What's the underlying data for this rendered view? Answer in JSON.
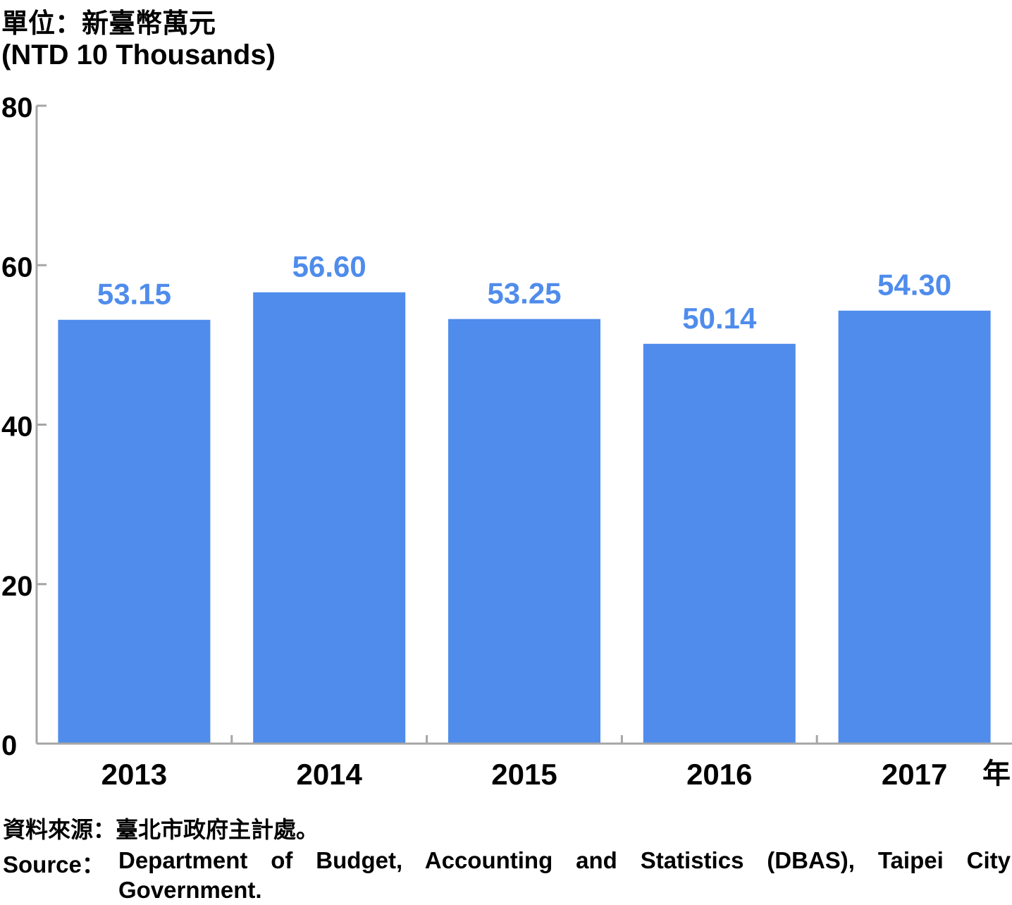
{
  "unit": {
    "zh": "單位：新臺幣萬元",
    "en": "(NTD 10 Thousands)"
  },
  "x_unit": "年",
  "source": {
    "zh": "資料來源：臺北市政府主計處。",
    "en_label": "Source：",
    "en_text": "Department of Budget, Accounting and Statistics (DBAS), Taipei City Government."
  },
  "colors": {
    "bar": "#4f8cec",
    "label": "#4f8cec",
    "axis": "#a6a6a6"
  },
  "chart_data": {
    "type": "bar",
    "categories": [
      "2013",
      "2014",
      "2015",
      "2016",
      "2017"
    ],
    "values": [
      53.15,
      56.6,
      53.25,
      50.14,
      54.3
    ],
    "value_labels": [
      "53.15",
      "56.60",
      "53.25",
      "50.14",
      "54.30"
    ],
    "ylim": [
      0,
      80
    ],
    "yticks": [
      0,
      20,
      40,
      60,
      80
    ],
    "grid": false,
    "legend": "none"
  }
}
